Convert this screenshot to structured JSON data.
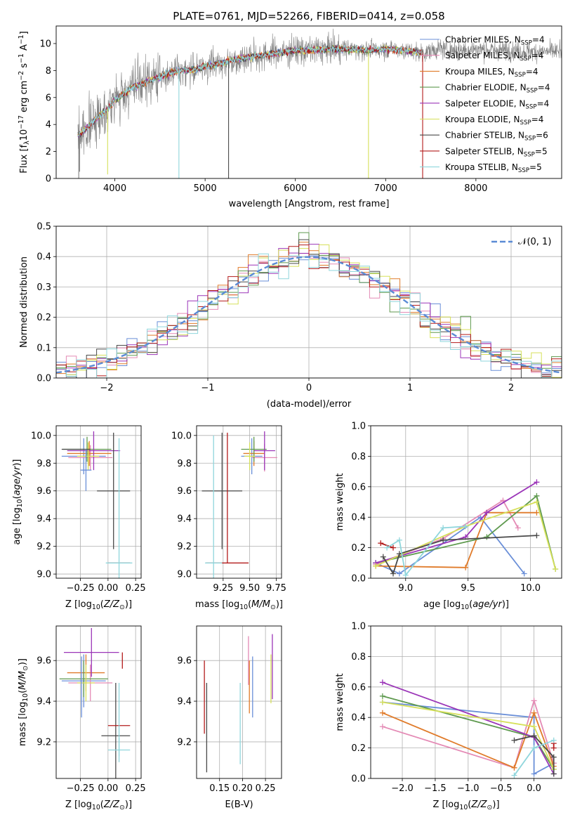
{
  "title": "PLATE=0761, MJD=52266, FIBERID=0414, z=0.058",
  "colors": {
    "chabrier_miles": "#6a8fd8",
    "salpeter_miles": "#e48ab5",
    "kroupa_miles": "#e07b2a",
    "chabrier_elodie": "#5f9a4f",
    "salpeter_elodie": "#9b35b8",
    "kroupa_elodie": "#d6e05a",
    "chabrier_stelib": "#4a4a4a",
    "salpeter_stelib": "#b31b1b",
    "kroupa_stelib": "#8fd6dc",
    "data": "#808080",
    "normal": "#5b8bd5"
  },
  "chart_data": [
    {
      "id": "spectrum",
      "type": "line",
      "xlabel": "wavelength [Angstrom, rest frame]",
      "ylabel": "Flux [f_λ 10^-17 erg cm^-2 s^-1 A^-1]",
      "xlim": [
        3350,
        8950
      ],
      "ylim": [
        0,
        11.3
      ],
      "xticks": [
        4000,
        5000,
        6000,
        7000,
        8000
      ],
      "yticks": [
        0,
        2,
        4,
        6,
        8,
        10
      ],
      "legend_position": "top-right",
      "legend": [
        {
          "name": "Chabrier MILES, N_SSP=4",
          "color": "#6a8fd8"
        },
        {
          "name": "Salpeter MILES, N_SSP=4",
          "color": "#e48ab5"
        },
        {
          "name": "Kroupa MILES, N_SSP=4",
          "color": "#e07b2a"
        },
        {
          "name": "Chabrier ELODIE, N_SSP=4",
          "color": "#5f9a4f"
        },
        {
          "name": "Salpeter ELODIE, N_SSP=4",
          "color": "#9b35b8"
        },
        {
          "name": "Kroupa ELODIE, N_SSP=4",
          "color": "#d6e05a"
        },
        {
          "name": "Chabrier STELIB, N_SSP=6",
          "color": "#4a4a4a"
        },
        {
          "name": "Salpeter STELIB, N_SSP=5",
          "color": "#b31b1b"
        },
        {
          "name": "Kroupa STELIB, N_SSP=5",
          "color": "#8fd6dc"
        }
      ],
      "continuum_x": [
        3600,
        3700,
        3800,
        3900,
        4000,
        4100,
        4200,
        4300,
        4400,
        4500,
        4600,
        4700,
        4800,
        4900,
        5000,
        5200,
        5400,
        5600,
        5800,
        6000,
        6200,
        6400,
        6600,
        6800,
        7000,
        7200,
        7400,
        7600,
        7800,
        8000,
        8200,
        8400,
        8600,
        8800,
        8900
      ],
      "continuum_y": [
        3.2,
        3.8,
        4.5,
        5.0,
        5.8,
        6.3,
        6.8,
        7.0,
        7.3,
        7.5,
        7.8,
        8.0,
        8.0,
        8.1,
        8.3,
        8.6,
        8.9,
        9.1,
        9.3,
        9.5,
        9.5,
        9.6,
        9.6,
        9.5,
        9.6,
        9.5,
        9.3,
        9.6,
        9.5,
        9.6,
        9.5,
        9.5,
        9.4,
        9.4,
        9.4
      ],
      "data_x_range": [
        3590,
        8950
      ],
      "model_x_range": [
        3590,
        7410
      ],
      "spikes": [
        {
          "x": 3600,
          "y": 0,
          "color": "#808080"
        },
        {
          "x": 3610,
          "y": 0.5,
          "color": "#808080"
        },
        {
          "x": 3920,
          "y": 0.3,
          "color": "#d6e05a"
        },
        {
          "x": 4710,
          "y": 0,
          "color": "#8fd6dc"
        },
        {
          "x": 5260,
          "y": 0,
          "color": "#4a4a4a"
        },
        {
          "x": 6810,
          "y": 0,
          "color": "#d6e05a"
        },
        {
          "x": 7410,
          "y": 0,
          "color": "#b31b1b"
        }
      ]
    },
    {
      "id": "residuals",
      "type": "line",
      "xlabel": "(data-model)/error",
      "ylabel": "Normed distribution",
      "xlim": [
        -2.5,
        2.5
      ],
      "ylim": [
        0,
        0.5
      ],
      "xticks": [
        -2,
        -1,
        0,
        1,
        2
      ],
      "yticks": [
        0.0,
        0.1,
        0.2,
        0.3,
        0.4,
        0.5
      ],
      "grid": true,
      "legend_position": "top-right",
      "normal_label": "𝒩(0, 1)",
      "normal_mean": 0,
      "normal_std": 1,
      "bin_width": 0.1
    },
    {
      "id": "age_vs_Z",
      "type": "scatter",
      "xlabel": "Z [log10(Z/Z⊙)]",
      "ylabel": "age [log10(age/yr)]",
      "xlim": [
        -0.47,
        0.3
      ],
      "ylim": [
        8.97,
        10.07
      ],
      "xticks": [
        -0.25,
        0.0,
        0.25
      ],
      "xtick_labels": [
        "−0.25",
        "0.00",
        "0.25"
      ],
      "yticks": [
        9.0,
        9.2,
        9.4,
        9.6,
        9.8,
        10.0
      ],
      "grid": true,
      "points": [
        {
          "x": -0.22,
          "y": 9.85,
          "dx": 0.2,
          "dy": 0.13,
          "color": "#6a8fd8"
        },
        {
          "x": -0.16,
          "y": 9.84,
          "dx": 0.2,
          "dy": 0.09,
          "color": "#e48ab5"
        },
        {
          "x": -0.17,
          "y": 9.87,
          "dx": 0.2,
          "dy": 0.09,
          "color": "#e07b2a"
        },
        {
          "x": -0.19,
          "y": 9.9,
          "dx": 0.22,
          "dy": 0.09,
          "color": "#5f9a4f"
        },
        {
          "x": -0.13,
          "y": 9.89,
          "dx": 0.24,
          "dy": 0.14,
          "color": "#9b35b8"
        },
        {
          "x": -0.18,
          "y": 9.85,
          "dx": 0.1,
          "dy": 0.1,
          "color": "#d6e05a"
        },
        {
          "x": -0.29,
          "y": 9.9,
          "dx": 0.13,
          "dy": 0.0,
          "color": "#4a4a4a"
        },
        {
          "x": 0.05,
          "y": 9.6,
          "dx": 0.15,
          "dy": 0.42,
          "color": "#4a4a4a"
        },
        {
          "x": 0.1,
          "y": 9.08,
          "dx": 0.1,
          "dy": 0.0,
          "color": "#b31b1b"
        },
        {
          "x": 0.1,
          "y": 9.08,
          "dx": 0.12,
          "dy": 0.9,
          "color": "#8fd6dc"
        },
        {
          "x": -0.2,
          "y": 9.75,
          "dx": 0.05,
          "dy": 0.15,
          "color": "#6a8fd8"
        }
      ]
    },
    {
      "id": "age_vs_mass",
      "type": "scatter",
      "xlabel": "mass [log10(M/M⊙)]",
      "ylabel": "",
      "xlim": [
        9.0,
        9.8
      ],
      "ylim": [
        8.97,
        10.07
      ],
      "xticks": [
        9.25,
        9.5,
        9.75
      ],
      "xtick_labels": [
        "9.25",
        "9.50",
        "9.75"
      ],
      "yticks": [
        9.0,
        9.2,
        9.4,
        9.6,
        9.8,
        10.0
      ],
      "grid": true,
      "points": [
        {
          "x": 9.52,
          "y": 9.85,
          "dx": 0.1,
          "dy": 0.13,
          "color": "#6a8fd8"
        },
        {
          "x": 9.64,
          "y": 9.84,
          "dx": 0.12,
          "dy": 0.1,
          "color": "#e48ab5"
        },
        {
          "x": 9.54,
          "y": 9.87,
          "dx": 0.1,
          "dy": 0.09,
          "color": "#e07b2a"
        },
        {
          "x": 9.54,
          "y": 9.9,
          "dx": 0.12,
          "dy": 0.09,
          "color": "#5f9a4f"
        },
        {
          "x": 9.64,
          "y": 9.89,
          "dx": 0.1,
          "dy": 0.14,
          "color": "#9b35b8"
        },
        {
          "x": 9.5,
          "y": 9.85,
          "dx": 0.05,
          "dy": 0.1,
          "color": "#d6e05a"
        },
        {
          "x": 9.24,
          "y": 9.6,
          "dx": 0.19,
          "dy": 0.42,
          "color": "#4a4a4a"
        },
        {
          "x": 9.29,
          "y": 9.08,
          "dx": 0.2,
          "dy": 0.0,
          "color": "#b31b1b"
        },
        {
          "x": 9.29,
          "y": 9.55,
          "dx": 0.0,
          "dy": 0.47,
          "color": "#b31b1b"
        },
        {
          "x": 9.16,
          "y": 9.08,
          "dx": 0.08,
          "dy": 0.92,
          "color": "#8fd6dc"
        }
      ]
    },
    {
      "id": "weight_vs_age",
      "type": "line",
      "xlabel": "age [log10(age/yr)]",
      "ylabel": "mass weight",
      "xlim": [
        8.72,
        10.25
      ],
      "ylim": [
        0,
        1
      ],
      "xticks": [
        9.0,
        9.5,
        10.0
      ],
      "yticks": [
        0.0,
        0.2,
        0.4,
        0.6,
        0.8,
        1.0
      ],
      "grid": true,
      "series": [
        {
          "color": "#6a8fd8",
          "x": [
            8.76,
            8.95,
            9.6,
            9.95
          ],
          "y": [
            0.1,
            0.03,
            0.4,
            0.03
          ]
        },
        {
          "color": "#e48ab5",
          "x": [
            8.76,
            9.3,
            9.78,
            9.9
          ],
          "y": [
            0.09,
            0.26,
            0.51,
            0.33
          ]
        },
        {
          "color": "#e07b2a",
          "x": [
            8.76,
            9.48,
            9.65,
            10.05
          ],
          "y": [
            0.08,
            0.07,
            0.43,
            0.43
          ]
        },
        {
          "color": "#5f9a4f",
          "x": [
            8.76,
            9.65,
            10.05,
            10.2
          ],
          "y": [
            0.1,
            0.27,
            0.54,
            0.06
          ]
        },
        {
          "color": "#9b35b8",
          "x": [
            8.76,
            9.48,
            9.65,
            10.05
          ],
          "y": [
            0.1,
            0.27,
            0.43,
            0.63
          ]
        },
        {
          "color": "#d6e05a",
          "x": [
            8.76,
            9.48,
            10.05,
            10.2
          ],
          "y": [
            0.08,
            0.34,
            0.5,
            0.06
          ]
        },
        {
          "color": "#4a4a4a",
          "x": [
            8.82,
            8.9,
            8.95,
            9.3,
            10.05
          ],
          "y": [
            0.14,
            0.03,
            0.16,
            0.25,
            0.28
          ]
        },
        {
          "color": "#b31b1b",
          "x": [
            8.8,
            8.9
          ],
          "y": [
            0.23,
            0.2
          ]
        },
        {
          "color": "#8fd6dc",
          "x": [
            8.85,
            8.95,
            9.0,
            9.3,
            9.48
          ],
          "y": [
            0.2,
            0.25,
            0.02,
            0.33,
            0.34
          ]
        }
      ]
    },
    {
      "id": "mass_vs_Z",
      "type": "scatter",
      "xlabel": "Z [log10(Z/Z⊙)]",
      "ylabel": "mass [log10(M/M⊙)]",
      "xlim": [
        -0.47,
        0.3
      ],
      "ylim": [
        9.02,
        9.77
      ],
      "xticks": [
        -0.25,
        0.0,
        0.25
      ],
      "xtick_labels": [
        "−0.25",
        "0.00",
        "0.25"
      ],
      "yticks": [
        9.2,
        9.4,
        9.6
      ],
      "grid": true,
      "points": [
        {
          "x": -0.22,
          "y": 9.5,
          "dx": 0.2,
          "dy": 0.13,
          "color": "#6a8fd8"
        },
        {
          "x": -0.16,
          "y": 9.49,
          "dx": 0.2,
          "dy": 0.09,
          "color": "#e48ab5"
        },
        {
          "x": -0.2,
          "y": 9.54,
          "dx": 0.17,
          "dy": 0.09,
          "color": "#e07b2a"
        },
        {
          "x": -0.22,
          "y": 9.51,
          "dx": 0.22,
          "dy": 0.09,
          "color": "#5f9a4f"
        },
        {
          "x": -0.15,
          "y": 9.64,
          "dx": 0.25,
          "dy": 0.12,
          "color": "#9b35b8"
        },
        {
          "x": -0.2,
          "y": 9.49,
          "dx": 0.08,
          "dy": 0.09,
          "color": "#d6e05a"
        },
        {
          "x": 0.07,
          "y": 9.23,
          "dx": 0.13,
          "dy": 0.26,
          "color": "#4a4a4a"
        },
        {
          "x": 0.1,
          "y": 9.28,
          "dx": 0.1,
          "dy": 0.0,
          "color": "#b31b1b"
        },
        {
          "x": 0.13,
          "y": 9.6,
          "dx": 0.0,
          "dy": 0.04,
          "color": "#b31b1b"
        },
        {
          "x": 0.1,
          "y": 9.16,
          "dx": 0.1,
          "dy": 0.06,
          "color": "#8fd6dc"
        },
        {
          "x": 0.1,
          "y": 9.31,
          "dx": 0.0,
          "dy": 0.18,
          "color": "#8fd6dc"
        },
        {
          "x": -0.24,
          "y": 9.47,
          "dx": 0.0,
          "dy": 0.15,
          "color": "#6a8fd8"
        }
      ]
    },
    {
      "id": "mass_vs_ebv",
      "type": "scatter",
      "xlabel": "E(B-V)",
      "ylabel": "",
      "xlim": [
        0.1,
        0.285
      ],
      "ylim": [
        9.02,
        9.77
      ],
      "xticks": [
        0.15,
        0.2,
        0.25
      ],
      "xtick_labels": [
        "0.15",
        "0.20",
        "0.25"
      ],
      "yticks": [
        9.2,
        9.4,
        9.6
      ],
      "grid": true,
      "points": [
        {
          "x": 0.117,
          "y": 9.42,
          "dy": 0.18,
          "color": "#b31b1b"
        },
        {
          "x": 0.122,
          "y": 9.27,
          "dy": 0.22,
          "color": "#4a4a4a"
        },
        {
          "x": 0.195,
          "y": 9.29,
          "dy": 0.2,
          "color": "#8fd6dc"
        },
        {
          "x": 0.213,
          "y": 9.6,
          "dy": 0.12,
          "color": "#e48ab5"
        },
        {
          "x": 0.215,
          "y": 9.47,
          "dy": 0.13,
          "color": "#e07b2a"
        },
        {
          "x": 0.222,
          "y": 9.47,
          "dy": 0.15,
          "color": "#6a8fd8"
        },
        {
          "x": 0.262,
          "y": 9.51,
          "dy": 0.12,
          "color": "#d6e05a"
        },
        {
          "x": 0.265,
          "y": 9.57,
          "dy": 0.16,
          "color": "#9b35b8"
        }
      ]
    },
    {
      "id": "weight_vs_Z",
      "type": "line",
      "xlabel": "Z [log10(Z/Z⊙)]",
      "ylabel": "mass weight",
      "xlim": [
        -2.48,
        0.42
      ],
      "ylim": [
        0,
        1
      ],
      "xticks": [
        -2.0,
        -1.5,
        -1.0,
        -0.5,
        0.0
      ],
      "xtick_labels": [
        "−2.0",
        "−1.5",
        "−1.0",
        "−0.5",
        "0.0"
      ],
      "yticks": [
        0.0,
        0.2,
        0.4,
        0.6,
        0.8,
        1.0
      ],
      "grid": true,
      "series": [
        {
          "color": "#6a8fd8",
          "x": [
            -2.3,
            0.0,
            0.0,
            0.3
          ],
          "y": [
            0.5,
            0.4,
            0.03,
            0.1
          ]
        },
        {
          "color": "#e48ab5",
          "x": [
            -2.3,
            -0.3,
            0.0,
            0.3
          ],
          "y": [
            0.34,
            0.07,
            0.51,
            0.1
          ]
        },
        {
          "color": "#e07b2a",
          "x": [
            -2.3,
            -0.3,
            0.0,
            0.3
          ],
          "y": [
            0.43,
            0.07,
            0.43,
            0.08
          ]
        },
        {
          "color": "#5f9a4f",
          "x": [
            -2.3,
            0.0,
            0.3
          ],
          "y": [
            0.54,
            0.27,
            0.06
          ]
        },
        {
          "color": "#9b35b8",
          "x": [
            -2.3,
            0.0,
            0.3
          ],
          "y": [
            0.63,
            0.27,
            0.03
          ]
        },
        {
          "color": "#d6e05a",
          "x": [
            -2.3,
            0.0,
            0.3
          ],
          "y": [
            0.5,
            0.34,
            0.06
          ]
        },
        {
          "color": "#4a4a4a",
          "x": [
            -0.3,
            0.0,
            0.3,
            0.3
          ],
          "y": [
            0.25,
            0.28,
            0.14,
            0.03
          ]
        },
        {
          "color": "#b31b1b",
          "x": [
            0.3,
            0.3
          ],
          "y": [
            0.23,
            0.2
          ]
        },
        {
          "color": "#8fd6dc",
          "x": [
            -0.3,
            0.0,
            0.3
          ],
          "y": [
            0.02,
            0.2,
            0.25
          ]
        }
      ]
    }
  ]
}
